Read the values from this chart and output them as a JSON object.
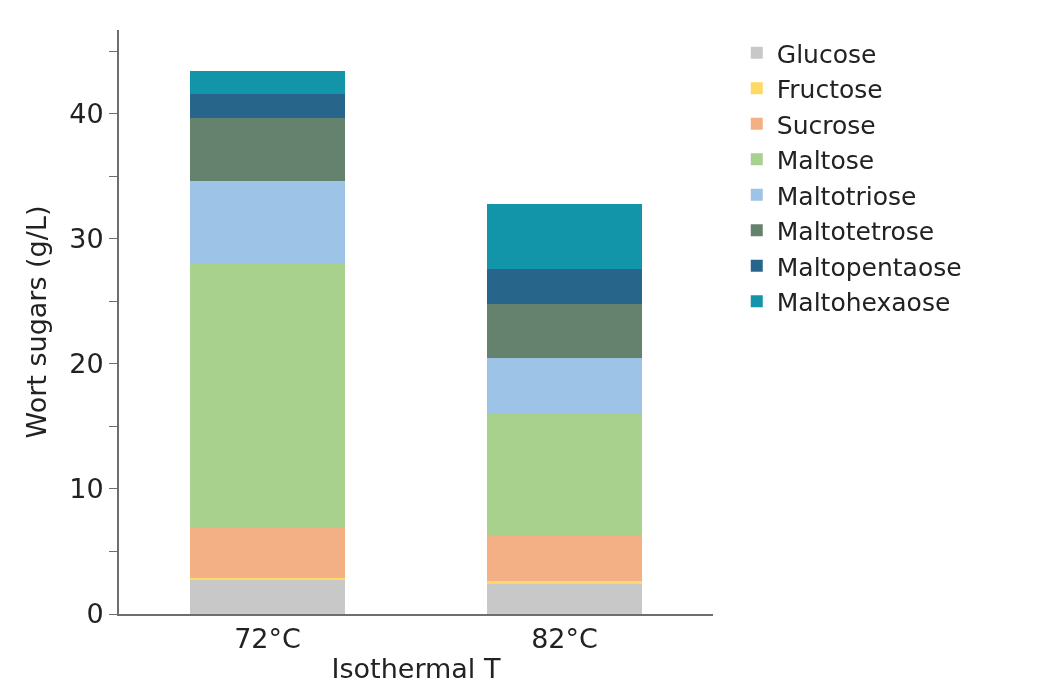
{
  "chart_data": {
    "type": "bar",
    "stacked": true,
    "xlabel": "Isothermal T",
    "ylabel": "Wort sugars (g/L)",
    "categories": [
      "72°C",
      "82°C"
    ],
    "series": [
      {
        "name": "Glucose",
        "color": "#c8c8c8",
        "values": [
          2.7,
          2.4
        ]
      },
      {
        "name": "Fructose",
        "color": "#ffd966",
        "values": [
          0.2,
          0.2
        ]
      },
      {
        "name": "Sucrose",
        "color": "#f2b084",
        "values": [
          4.0,
          3.6
        ]
      },
      {
        "name": "Maltose",
        "color": "#a9d18e",
        "values": [
          21.2,
          9.8
        ]
      },
      {
        "name": "Maltotriose",
        "color": "#9dc3e6",
        "values": [
          6.5,
          4.5
        ]
      },
      {
        "name": "Maltotetrose",
        "color": "#65826f",
        "values": [
          5.1,
          4.3
        ]
      },
      {
        "name": "Maltopentaose",
        "color": "#27668a",
        "values": [
          1.9,
          2.8
        ]
      },
      {
        "name": "Maltohexaose",
        "color": "#1395a9",
        "values": [
          1.8,
          5.2
        ]
      }
    ],
    "ylim": [
      0,
      46.7
    ],
    "yticks": [
      0,
      {
        "value": 5,
        "label": null
      },
      10,
      {
        "value": 15,
        "label": null
      },
      20,
      {
        "value": 25,
        "label": null
      },
      30,
      {
        "value": 35,
        "label": null
      },
      40,
      {
        "value": 45,
        "label": null
      }
    ],
    "legend": "top right"
  }
}
